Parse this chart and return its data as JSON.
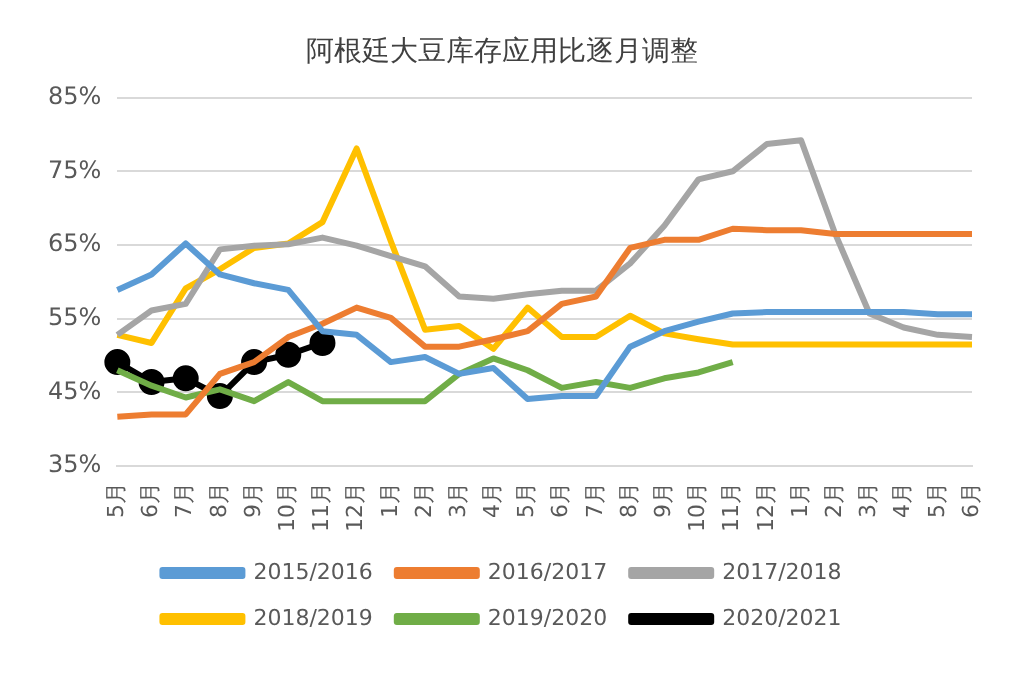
{
  "chart_data": {
    "type": "line",
    "title": "阿根廷大豆库存应用比逐月调整",
    "categories": [
      "5月",
      "6月",
      "7月",
      "8月",
      "9月",
      "10月",
      "11月",
      "12月",
      "1月",
      "2月",
      "3月",
      "4月",
      "5月",
      "6月",
      "7月",
      "8月",
      "9月",
      "10月",
      "11月",
      "12月",
      "1月",
      "2月",
      "3月",
      "4月",
      "5月",
      "6月"
    ],
    "series": [
      {
        "name": "2015/2016",
        "color": "#5b9bd5",
        "values": [
          58.9,
          61,
          65.2,
          61,
          59.8,
          58.9,
          53.3,
          52.8,
          49.1,
          49.8,
          47.5,
          48.3,
          44.1,
          44.5,
          44.5,
          51.2,
          53.3,
          54.6,
          55.7,
          55.9,
          55.9,
          55.9,
          55.9,
          55.9,
          55.6,
          55.6
        ]
      },
      {
        "name": "2016/2017",
        "color": "#ed7d31",
        "values": [
          41.7,
          42,
          42,
          47.5,
          49.1,
          52.5,
          54.3,
          56.5,
          55.1,
          51.2,
          51.2,
          52.2,
          53.3,
          57,
          58,
          64.6,
          65.7,
          65.7,
          67.2,
          67,
          67,
          66.5,
          66.5,
          66.5,
          66.5,
          66.5
        ]
      },
      {
        "name": "2017/2018",
        "color": "#a5a5a5",
        "values": [
          52.8,
          56.1,
          57,
          64.4,
          64.9,
          65.1,
          66,
          64.9,
          63.5,
          62.1,
          58,
          57.7,
          58.3,
          58.8,
          58.8,
          62.5,
          67.6,
          73.9,
          75,
          78.7,
          79.2,
          66.5,
          55.7,
          53.8,
          52.8,
          52.5
        ]
      },
      {
        "name": "2018/2019",
        "color": "#ffc000",
        "values": [
          52.8,
          51.7,
          59.1,
          61.7,
          64.6,
          65.2,
          68.1,
          78.1,
          65.5,
          53.5,
          54,
          50.9,
          56.5,
          52.5,
          52.5,
          55.4,
          53,
          52.2,
          51.5,
          51.5,
          51.5,
          51.5,
          51.5,
          51.5,
          51.5,
          51.5
        ]
      },
      {
        "name": "2019/2020",
        "color": "#70ad47",
        "values": [
          48,
          45.9,
          44.3,
          45.4,
          43.8,
          46.4,
          43.8,
          43.8,
          43.8,
          43.8,
          47.5,
          49.6,
          48,
          45.6,
          46.4,
          45.6,
          46.9,
          47.7,
          49.1,
          null,
          null,
          null,
          null,
          null,
          null,
          null
        ]
      },
      {
        "name": "2020/2021",
        "color": "#000000",
        "marker": "circle",
        "values": [
          49.1,
          46.4,
          46.9,
          44.5,
          49.1,
          50.1,
          51.7,
          null,
          null,
          null,
          null,
          null,
          null,
          null,
          null,
          null,
          null,
          null,
          null,
          null,
          null,
          null,
          null,
          null,
          null,
          null
        ]
      }
    ],
    "ylim": [
      35,
      85
    ],
    "yticks": [
      {
        "value": 35,
        "label": "35%"
      },
      {
        "value": 45,
        "label": "45%"
      },
      {
        "value": 55,
        "label": "55%"
      },
      {
        "value": 65,
        "label": "65%"
      },
      {
        "value": 75,
        "label": "75%"
      },
      {
        "value": 85,
        "label": "85%"
      }
    ],
    "grid": "y",
    "legend": "bottom",
    "marker": "none"
  }
}
